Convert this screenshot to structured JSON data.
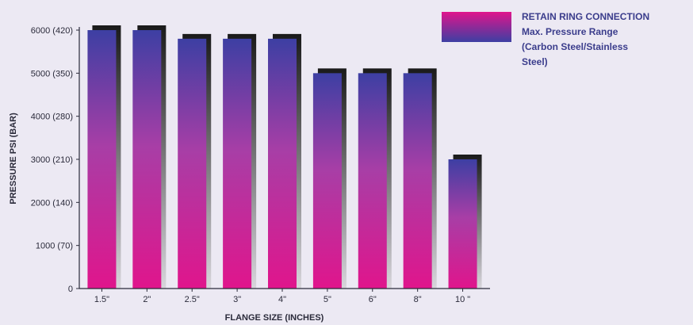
{
  "chart_data": {
    "type": "bar",
    "categories": [
      "1.5\"",
      "2\"",
      "2.5\"",
      "3\"",
      "4\"",
      "5\"",
      "6\"",
      "8\"",
      "10 \""
    ],
    "values": [
      6000,
      6000,
      5800,
      5800,
      5800,
      5000,
      5000,
      5000,
      3000
    ],
    "ylim": [
      0,
      6000
    ],
    "yticks": [
      {
        "value": 0,
        "label": "0"
      },
      {
        "value": 1000,
        "label": "1000 (70)"
      },
      {
        "value": 2000,
        "label": "2000 (140)"
      },
      {
        "value": 3000,
        "label": "3000 (210)"
      },
      {
        "value": 4000,
        "label": "4000 (280)"
      },
      {
        "value": 5000,
        "label": "5000 (350)"
      },
      {
        "value": 6000,
        "label": "6000 (420)"
      }
    ],
    "xlabel": "FLANGE SIZE (INCHES)",
    "ylabel": "PRESSURE PSI (BAR)",
    "grid": false,
    "legend_placement": "top-right",
    "legend_lines": [
      "RETAIN RING CONNECTION",
      "Max. Pressure Range",
      "(Carbon Steel/Stainless",
      "Steel)"
    ],
    "colors": {
      "bar_top": "#3d3fa3",
      "bar_mid": "#a83ea6",
      "bar_bottom": "#e0158c",
      "shadow_top": "#1a1a1a",
      "shadow_bottom": "#d8d6dc",
      "legend_text": "#3b3d8c",
      "axis": "#2a2a3a"
    }
  }
}
